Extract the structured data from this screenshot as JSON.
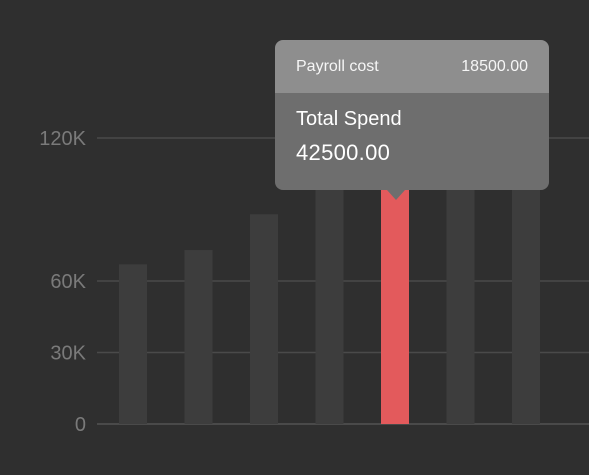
{
  "chart_data": {
    "type": "bar",
    "categories": [
      "",
      "",
      "",
      "",
      "",
      "",
      ""
    ],
    "series": [
      {
        "values": [
          67000,
          73000,
          88000,
          108000,
          108000,
          112000,
          115000
        ]
      }
    ],
    "highlight_index": 4,
    "yticks": [
      {
        "value": 0,
        "label": "0"
      },
      {
        "value": 30000,
        "label": "30K"
      },
      {
        "value": 60000,
        "label": "60K"
      },
      {
        "value": 120000,
        "label": "120K"
      }
    ],
    "ylim": [
      0,
      120000
    ],
    "grid": true,
    "colors": {
      "background": "#2f2f2f",
      "bar": "#3d3d3d",
      "highlight": "#e35a5c",
      "grid": "#4a4a4a",
      "tick_label": "#7a7a7a"
    }
  },
  "tooltip": {
    "header_label": "Payroll cost",
    "header_value": "18500.00",
    "label": "Total Spend",
    "value": "42500.00"
  }
}
